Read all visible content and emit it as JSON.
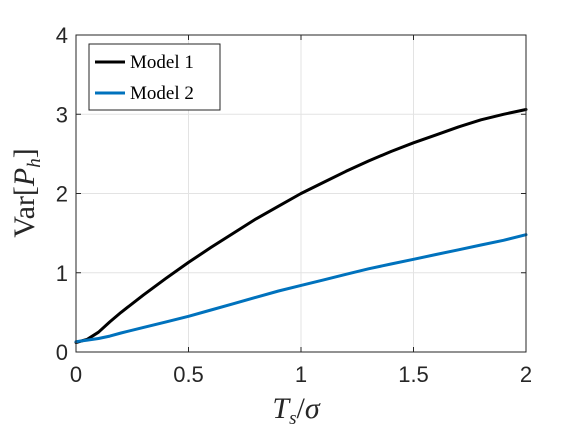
{
  "chart_data": {
    "type": "line",
    "xlabel": "Ts/σ",
    "ylabel": "Var[Ph]",
    "xlim": [
      0,
      2
    ],
    "ylim": [
      0,
      4
    ],
    "xticks": [
      "0",
      "0.5",
      "1",
      "1.5",
      "2"
    ],
    "yticks": [
      "0",
      "1",
      "2",
      "3",
      "4"
    ],
    "grid": true,
    "legend_position": "top-left",
    "series": [
      {
        "name": "Model 1",
        "color": "#000000",
        "x": [
          0,
          0.05,
          0.1,
          0.15,
          0.2,
          0.3,
          0.4,
          0.5,
          0.6,
          0.7,
          0.8,
          0.9,
          1.0,
          1.1,
          1.2,
          1.3,
          1.4,
          1.5,
          1.6,
          1.7,
          1.8,
          1.9,
          2.0
        ],
        "y": [
          0.12,
          0.16,
          0.25,
          0.38,
          0.5,
          0.72,
          0.93,
          1.13,
          1.32,
          1.5,
          1.68,
          1.84,
          2.0,
          2.14,
          2.28,
          2.41,
          2.53,
          2.64,
          2.74,
          2.84,
          2.93,
          3.0,
          3.06
        ]
      },
      {
        "name": "Model 2",
        "color": "#0072BD",
        "x": [
          0,
          0.05,
          0.1,
          0.15,
          0.2,
          0.3,
          0.4,
          0.5,
          0.6,
          0.7,
          0.8,
          0.9,
          1.0,
          1.1,
          1.2,
          1.3,
          1.4,
          1.5,
          1.6,
          1.7,
          1.8,
          1.9,
          2.0
        ],
        "y": [
          0.13,
          0.15,
          0.17,
          0.2,
          0.24,
          0.31,
          0.38,
          0.45,
          0.53,
          0.61,
          0.69,
          0.77,
          0.84,
          0.91,
          0.98,
          1.05,
          1.11,
          1.17,
          1.23,
          1.29,
          1.35,
          1.41,
          1.48
        ]
      }
    ]
  }
}
